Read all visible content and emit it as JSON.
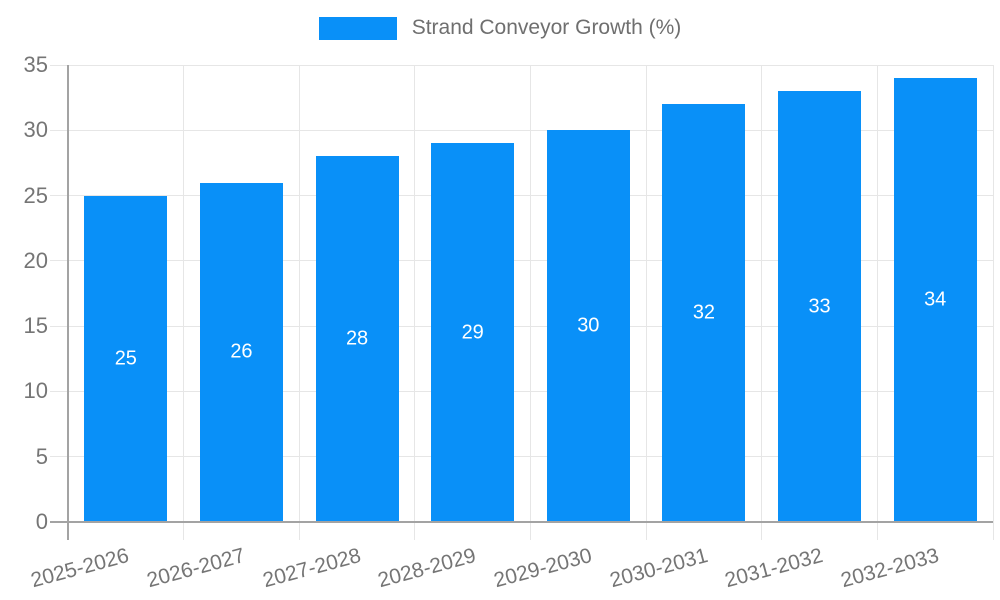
{
  "legend": {
    "label": "Strand Conveyor Growth (%)"
  },
  "chart_data": {
    "type": "bar",
    "title": "Strand Conveyor Growth (%)",
    "categories": [
      "2025-2026",
      "2026-2027",
      "2027-2028",
      "2028-2029",
      "2029-2030",
      "2030-2031",
      "2031-2032",
      "2032-2033"
    ],
    "series": [
      {
        "name": "Strand Conveyor Growth (%)",
        "values": [
          25,
          26,
          28,
          29,
          30,
          32,
          33,
          34
        ]
      }
    ],
    "value_labels": [
      "25",
      "26",
      "28",
      "29",
      "30",
      "32",
      "33",
      "34"
    ],
    "xlabel": "",
    "ylabel": "",
    "ylim": [
      0,
      35
    ],
    "yticks": [
      0,
      5,
      10,
      15,
      20,
      25,
      30,
      35
    ],
    "grid": true,
    "legend_position": "top-center",
    "colors": {
      "bar": "#0990f8",
      "grid": "#e6e6e6",
      "axis_line": "#a3a3a3",
      "axis_text": "#757575",
      "value_text": "#ffffff",
      "background": "#ffffff"
    }
  }
}
